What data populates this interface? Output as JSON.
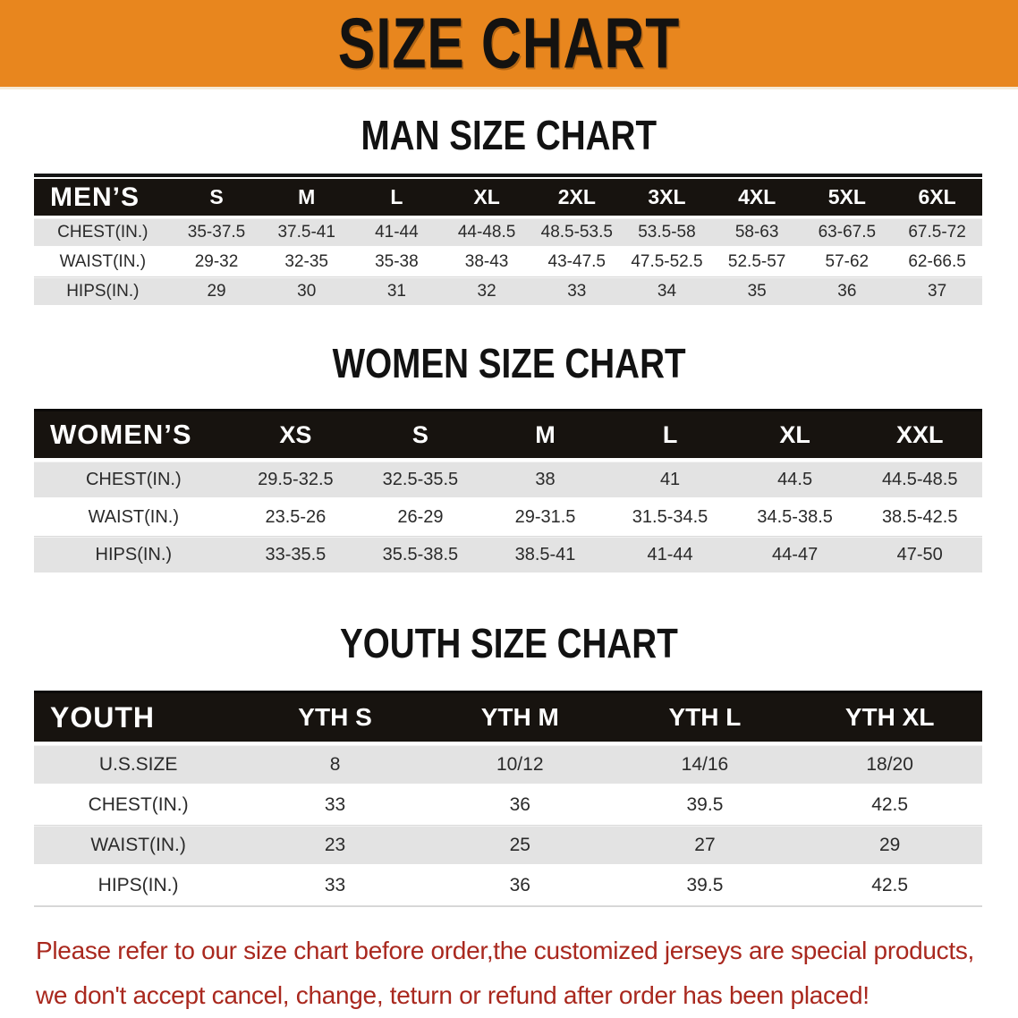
{
  "banner": {
    "title": "SIZE CHART",
    "bg": "#E8861E",
    "text_color": "#141210"
  },
  "sections": [
    {
      "id": "men",
      "heading": "MAN SIZE CHART",
      "group_label": "MEN’S",
      "columns": [
        "S",
        "M",
        "L",
        "XL",
        "2XL",
        "3XL",
        "4XL",
        "5XL",
        "6XL"
      ],
      "rows": [
        {
          "label": "CHEST(IN.)",
          "values": [
            "35-37.5",
            "37.5-41",
            "41-44",
            "44-48.5",
            "48.5-53.5",
            "53.5-58",
            "58-63",
            "63-67.5",
            "67.5-72"
          ]
        },
        {
          "label": "WAIST(IN.)",
          "values": [
            "29-32",
            "32-35",
            "35-38",
            "38-43",
            "43-47.5",
            "47.5-52.5",
            "52.5-57",
            "57-62",
            "62-66.5"
          ]
        },
        {
          "label": "HIPS(IN.)",
          "values": [
            "29",
            "30",
            "31",
            "32",
            "33",
            "34",
            "35",
            "36",
            "37"
          ]
        }
      ]
    },
    {
      "id": "women",
      "heading": "WOMEN SIZE CHART",
      "group_label": "WOMEN’S",
      "columns": [
        "XS",
        "S",
        "M",
        "L",
        "XL",
        "XXL"
      ],
      "rows": [
        {
          "label": "CHEST(IN.)",
          "values": [
            "29.5-32.5",
            "32.5-35.5",
            "38",
            "41",
            "44.5",
            "44.5-48.5"
          ]
        },
        {
          "label": "WAIST(IN.)",
          "values": [
            "23.5-26",
            "26-29",
            "29-31.5",
            "31.5-34.5",
            "34.5-38.5",
            "38.5-42.5"
          ]
        },
        {
          "label": "HIPS(IN.)",
          "values": [
            "33-35.5",
            "35.5-38.5",
            "38.5-41",
            "41-44",
            "44-47",
            "47-50"
          ]
        }
      ]
    },
    {
      "id": "youth",
      "heading": "YOUTH SIZE CHART",
      "group_label": "YOUTH",
      "columns": [
        "YTH S",
        "YTH M",
        "YTH L",
        "YTH XL"
      ],
      "rows": [
        {
          "label": "U.S.SIZE",
          "values": [
            "8",
            "10/12",
            "14/16",
            "18/20"
          ]
        },
        {
          "label": "CHEST(IN.)",
          "values": [
            "33",
            "36",
            "39.5",
            "42.5"
          ]
        },
        {
          "label": "WAIST(IN.)",
          "values": [
            "23",
            "25",
            "27",
            "29"
          ]
        },
        {
          "label": "HIPS(IN.)",
          "values": [
            "33",
            "36",
            "39.5",
            "42.5"
          ]
        }
      ]
    }
  ],
  "disclaimer": {
    "line1": "Please refer to our size chart before order,the customized jerseys are special products,",
    "line2": "we don't accept cancel, change, teturn or refund after order has been placed!",
    "color": "#A9281E"
  },
  "colors": {
    "banner_orange": "#E8861E",
    "header_bar_black": "#17130f",
    "stripe_gray": "#E3E3E3",
    "disclaimer_red": "#A9281E"
  }
}
